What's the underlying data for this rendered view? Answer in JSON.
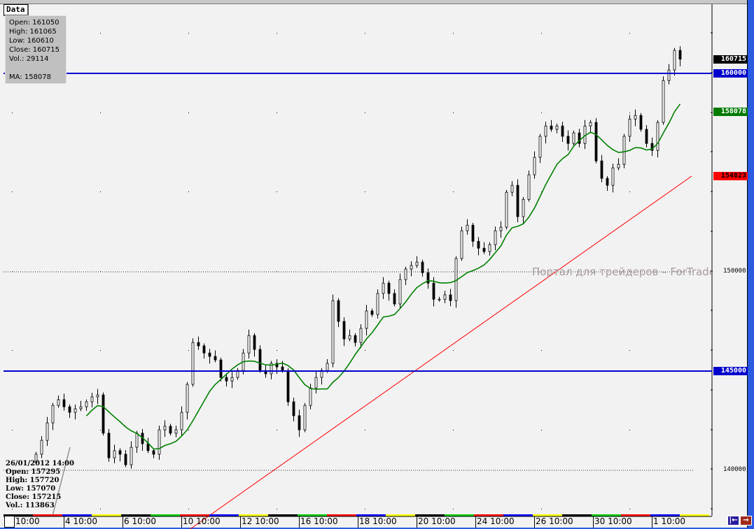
{
  "data_tab": "Data",
  "info": {
    "open": "Open: 161050",
    "high": "High: 161065",
    "low": "Low: 160610",
    "close": "Close: 160715",
    "vol": "Vol.: 29114",
    "ma": "MA: 158078"
  },
  "bar_info": {
    "datetime": "26/01/2012 14:00",
    "open": "Open: 157295",
    "high": "High: 157720",
    "low": "Low: 157070",
    "close": "Close: 157215",
    "vol": "Vol.: 113863"
  },
  "watermark": "Портал для трейдеров – ForTrader.ru",
  "price_tags": [
    {
      "label": "160715",
      "value": 160715,
      "bg": "#000000",
      "fg": "#ffffff"
    },
    {
      "label": "160000",
      "value": 160000,
      "bg": "#0000cc",
      "fg": "#ffffff"
    },
    {
      "label": "158078",
      "value": 158078,
      "bg": "#007a00",
      "fg": "#ffffff"
    },
    {
      "label": "154823",
      "value": 154823,
      "bg": "#ff0000",
      "fg": "#000000"
    },
    {
      "label": "145000",
      "value": 145000,
      "bg": "#0000cc",
      "fg": "#ffffff"
    }
  ],
  "axis_labels": [
    {
      "label": "150000",
      "value": 150000
    },
    {
      "label": "140000",
      "value": 140000
    }
  ],
  "time_labels": [
    "10:00",
    "4 10:00",
    "6 10:00",
    "10 10:00",
    "12 10:00",
    "16 10:00",
    "18 10:00",
    "20 10:00",
    "24 10:00",
    "26 10:00",
    "30 10:00",
    "1 10:00"
  ],
  "scroll_buttons": {
    "left_icon": "scroll-to-start-icon",
    "right_icon": "scroll-right-icon"
  },
  "colors": {
    "candle_up": "#ffffff",
    "candle_down": "#000000",
    "ma": "#008000",
    "hline": "#0000cc",
    "trendline": "#ff0000"
  },
  "chart_data": {
    "type": "candlestick",
    "ylim": [
      136700,
      162500
    ],
    "horizontal_lines": [
      160000,
      145000
    ],
    "dotted_lines": [
      150000,
      140000
    ],
    "trendline_price_range": [
      136700,
      154823
    ],
    "closes": [
      140810,
      141510,
      142390,
      143270,
      143560,
      143200,
      142920,
      143100,
      143200,
      143450,
      143700,
      143800,
      141870,
      140630,
      140990,
      140810,
      140280,
      141160,
      141870,
      141340,
      140990,
      140810,
      142040,
      142220,
      141870,
      142040,
      142920,
      144330,
      146440,
      146270,
      145910,
      145740,
      145560,
      144680,
      144500,
      144680,
      145030,
      145910,
      146790,
      146090,
      145030,
      144860,
      145390,
      145210,
      145030,
      143450,
      142750,
      142040,
      143270,
      144150,
      144680,
      145030,
      145390,
      148550,
      147500,
      146620,
      146790,
      146440,
      147150,
      148030,
      147850,
      148910,
      149430,
      148910,
      148380,
      149610,
      150140,
      150320,
      150490,
      149960,
      149430,
      148620,
      148620,
      148840,
      148550,
      150670,
      152070,
      152350,
      151540,
      151190,
      151020,
      151370,
      152070,
      152250,
      154010,
      154360,
      152780,
      153650,
      154890,
      155770,
      156830,
      157350,
      157180,
      157350,
      156830,
      156470,
      157000,
      156470,
      157350,
      157530,
      155590,
      154710,
      154360,
      155240,
      155420,
      156830,
      157700,
      157880,
      157180,
      156470,
      156120,
      157530,
      159640,
      160170,
      161160,
      160715
    ],
    "ma_label": "MA"
  }
}
